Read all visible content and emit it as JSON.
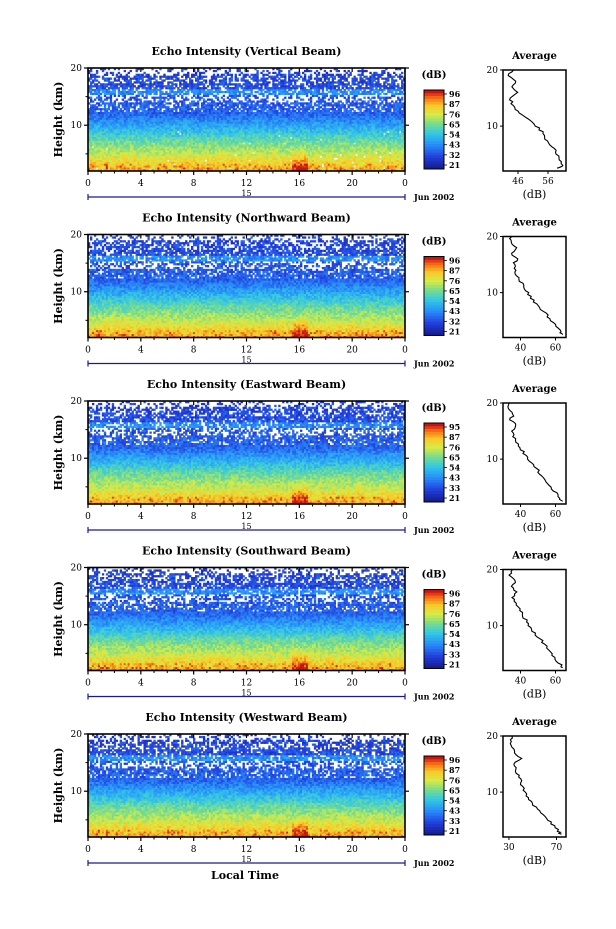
{
  "figure": {
    "xlabel": "Local Time",
    "date_label": "Jun 2002",
    "day_label": "15",
    "colorbar_unit": "(dB)",
    "colorbar_ticks": [
      "96",
      "87",
      "76",
      "65",
      "54",
      "43",
      "32",
      "21"
    ]
  },
  "chart_data": [
    {
      "type": "heatmap",
      "title": "Echo Intensity (Vertical Beam)",
      "ylabel": "Height (km)",
      "xticks": [
        "0",
        "4",
        "8",
        "12",
        "16",
        "20",
        "0"
      ],
      "yticks": [
        "20",
        "10"
      ],
      "xlim": [
        0,
        24
      ],
      "ylim": [
        2,
        20
      ],
      "colorbar": {
        "label": "(dB)",
        "range": [
          21,
          96
        ],
        "ticks": [
          "96",
          "87",
          "76",
          "65",
          "54",
          "43",
          "32",
          "21"
        ]
      },
      "profile": {
        "title": "Average",
        "xlabel": "(dB)",
        "xticks": [
          "46",
          "56"
        ],
        "yticks": [
          "20",
          "10"
        ],
        "xlim": [
          41,
          62
        ],
        "height_km": [
          2.5,
          3,
          4,
          5,
          6,
          7,
          8,
          9,
          10,
          11,
          12,
          13,
          14,
          15,
          16,
          17,
          18,
          19,
          20
        ],
        "avg_db": [
          59,
          61,
          60,
          59,
          58,
          56,
          55,
          54,
          52,
          50,
          47,
          45,
          44,
          43.5,
          46,
          44,
          45,
          43,
          44
        ]
      }
    },
    {
      "type": "heatmap",
      "title": "Echo Intensity (Northward Beam)",
      "ylabel": "Height (km)",
      "xticks": [
        "0",
        "4",
        "8",
        "12",
        "16",
        "20",
        "0"
      ],
      "yticks": [
        "20",
        "10"
      ],
      "xlim": [
        0,
        24
      ],
      "ylim": [
        2,
        20
      ],
      "colorbar": {
        "label": "(dB)",
        "range": [
          21,
          96
        ],
        "ticks": [
          "96",
          "87",
          "76",
          "65",
          "54",
          "43",
          "32",
          "21"
        ]
      },
      "profile": {
        "title": "Average",
        "xlabel": "(dB)",
        "xticks": [
          "40",
          "60"
        ],
        "yticks": [
          "20",
          "10"
        ],
        "xlim": [
          30,
          66
        ],
        "height_km": [
          2.5,
          3,
          4,
          5,
          6,
          7,
          8,
          9,
          10,
          11,
          12,
          13,
          14,
          15,
          16,
          17,
          18,
          19,
          20
        ],
        "avg_db": [
          64,
          63,
          60,
          58,
          55,
          52,
          49,
          46,
          44,
          42,
          40,
          38,
          37,
          36,
          38,
          35,
          37,
          34,
          35
        ]
      }
    },
    {
      "type": "heatmap",
      "title": "Echo Intensity (Eastward Beam)",
      "ylabel": "Height (km)",
      "xticks": [
        "0",
        "4",
        "8",
        "12",
        "16",
        "20",
        "0"
      ],
      "yticks": [
        "20",
        "10"
      ],
      "xlim": [
        0,
        24
      ],
      "ylim": [
        2,
        20
      ],
      "colorbar": {
        "label": "(dB)",
        "range": [
          21,
          95
        ],
        "ticks": [
          "95",
          "87",
          "76",
          "65",
          "54",
          "43",
          "33",
          "21"
        ]
      },
      "profile": {
        "title": "Average",
        "xlabel": "(dB)",
        "xticks": [
          "40",
          "60"
        ],
        "yticks": [
          "20",
          "10"
        ],
        "xlim": [
          30,
          66
        ],
        "height_km": [
          2.5,
          3,
          4,
          5,
          6,
          7,
          8,
          9,
          10,
          11,
          12,
          13,
          14,
          15,
          16,
          17,
          18,
          19,
          20
        ],
        "avg_db": [
          64,
          62,
          60,
          57,
          55,
          52,
          50,
          47,
          44,
          42,
          40,
          38,
          36,
          35,
          38,
          34,
          36,
          33,
          34
        ]
      }
    },
    {
      "type": "heatmap",
      "title": "Echo Intensity (Southward Beam)",
      "ylabel": "Height (km)",
      "xticks": [
        "0",
        "4",
        "8",
        "12",
        "16",
        "20",
        "0"
      ],
      "yticks": [
        "20",
        "10"
      ],
      "xlim": [
        0,
        24
      ],
      "ylim": [
        2,
        20
      ],
      "colorbar": {
        "label": "(dB)",
        "range": [
          21,
          96
        ],
        "ticks": [
          "96",
          "87",
          "76",
          "65",
          "54",
          "43",
          "33",
          "21"
        ]
      },
      "profile": {
        "title": "Average",
        "xlabel": "(dB)",
        "xticks": [
          "40",
          "60"
        ],
        "yticks": [
          "20",
          "10"
        ],
        "xlim": [
          30,
          66
        ],
        "height_km": [
          2.5,
          3,
          4,
          5,
          6,
          7,
          8,
          9,
          10,
          11,
          12,
          13,
          14,
          15,
          16,
          17,
          18,
          19,
          20
        ],
        "avg_db": [
          64,
          63,
          60,
          58,
          55,
          53,
          50,
          47,
          45,
          43,
          41,
          39,
          37,
          36,
          38,
          35,
          37,
          34,
          35
        ]
      }
    },
    {
      "type": "heatmap",
      "title": "Echo Intensity (Westward Beam)",
      "ylabel": "Height (km)",
      "xticks": [
        "0",
        "4",
        "8",
        "12",
        "16",
        "20",
        "0"
      ],
      "yticks": [
        "20",
        "10"
      ],
      "xlim": [
        0,
        24
      ],
      "ylim": [
        2,
        20
      ],
      "colorbar": {
        "label": "(dB)",
        "range": [
          21,
          96
        ],
        "ticks": [
          "96",
          "87",
          "76",
          "65",
          "54",
          "43",
          "33",
          "21"
        ]
      },
      "profile": {
        "title": "Average",
        "xlabel": "(dB)",
        "xticks": [
          "30",
          "70"
        ],
        "yticks": [
          "20",
          "10"
        ],
        "xlim": [
          25,
          78
        ],
        "height_km": [
          2.5,
          3,
          4,
          5,
          6,
          7,
          8,
          9,
          10,
          11,
          12,
          13,
          14,
          15,
          16,
          17,
          18,
          19,
          20
        ],
        "avg_db": [
          74,
          72,
          68,
          63,
          58,
          54,
          50,
          46,
          43,
          41,
          40,
          38,
          36,
          34,
          40,
          35,
          32,
          31,
          33
        ]
      }
    }
  ]
}
